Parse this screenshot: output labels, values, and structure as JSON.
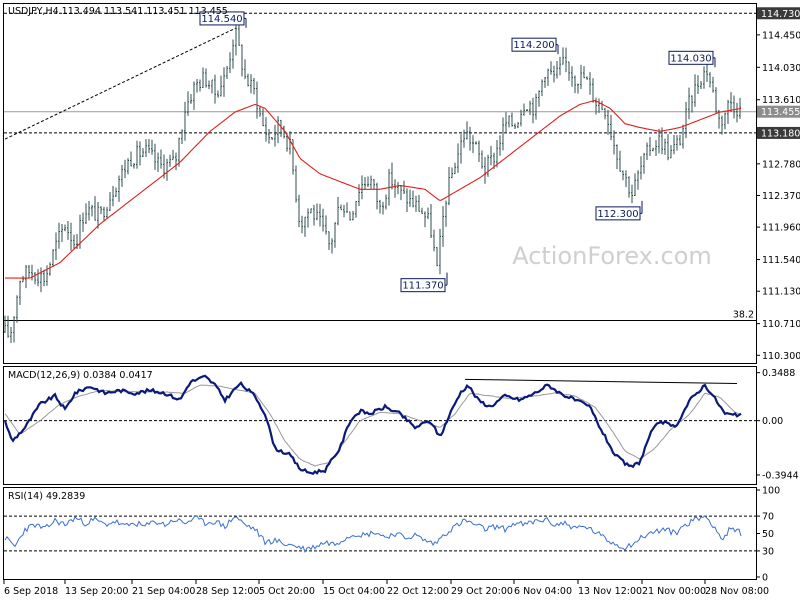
{
  "chart_data": {
    "type": "line",
    "header": "USDJPY,H4  113.494 113.541 113.451 113.455",
    "watermark": "ActionForex.com",
    "colors": {
      "price": "#2f4f4f",
      "ma": "#e0201c",
      "macd": "#0b1a78",
      "signal": "#999999",
      "rsi": "#3b6fd0",
      "grid": "#000000",
      "label_box": "#0b1a5c"
    },
    "price": {
      "ylim": [
        110.2,
        114.85
      ],
      "tick_values": [
        114.73,
        114.45,
        114.03,
        113.61,
        113.455,
        113.18,
        112.78,
        112.37,
        111.96,
        111.54,
        111.13,
        110.71,
        110.3
      ],
      "tick_labels": [
        "114.730",
        "114.450",
        "114.030",
        "113.610",
        "113.455",
        "113.180",
        "112.780",
        "112.370",
        "111.960",
        "111.540",
        "111.130",
        "110.710",
        "110.300"
      ],
      "current_price": 113.455,
      "support_level": 113.18,
      "top_level": 114.73,
      "fib_level": 110.75,
      "fib_label": "38.2",
      "annotations": [
        {
          "label": "114.540",
          "x": 236,
          "value": 114.54
        },
        {
          "label": "114.200",
          "x": 548,
          "value": 114.2
        },
        {
          "label": "114.030",
          "x": 705,
          "value": 114.03
        },
        {
          "label": "111.370",
          "x": 437,
          "value": 111.37
        },
        {
          "label": "112.300",
          "x": 632,
          "value": 112.3
        }
      ],
      "anchors": [
        [
          5,
          110.6
        ],
        [
          10,
          110.55
        ],
        [
          20,
          111.3
        ],
        [
          30,
          111.4
        ],
        [
          45,
          111.3
        ],
        [
          55,
          111.7
        ],
        [
          65,
          112.0
        ],
        [
          75,
          111.75
        ],
        [
          85,
          112.2
        ],
        [
          100,
          112.1
        ],
        [
          115,
          112.5
        ],
        [
          130,
          112.85
        ],
        [
          145,
          112.95
        ],
        [
          160,
          112.75
        ],
        [
          175,
          112.8
        ],
        [
          185,
          113.5
        ],
        [
          195,
          113.8
        ],
        [
          205,
          113.9
        ],
        [
          215,
          113.7
        ],
        [
          225,
          113.9
        ],
        [
          235,
          114.5
        ],
        [
          245,
          113.9
        ],
        [
          255,
          113.7
        ],
        [
          262,
          113.3
        ],
        [
          270,
          113.1
        ],
        [
          280,
          113.3
        ],
        [
          290,
          113.0
        ],
        [
          300,
          112.0
        ],
        [
          310,
          112.2
        ],
        [
          320,
          112.0
        ],
        [
          330,
          111.7
        ],
        [
          340,
          112.3
        ],
        [
          350,
          112.1
        ],
        [
          360,
          112.5
        ],
        [
          370,
          112.6
        ],
        [
          380,
          112.2
        ],
        [
          390,
          112.6
        ],
        [
          400,
          112.4
        ],
        [
          410,
          112.3
        ],
        [
          420,
          112.2
        ],
        [
          430,
          112.0
        ],
        [
          437,
          111.4
        ],
        [
          445,
          112.3
        ],
        [
          455,
          112.8
        ],
        [
          465,
          113.2
        ],
        [
          475,
          113.0
        ],
        [
          485,
          112.7
        ],
        [
          495,
          112.9
        ],
        [
          505,
          113.3
        ],
        [
          515,
          113.3
        ],
        [
          525,
          113.6
        ],
        [
          535,
          113.5
        ],
        [
          545,
          114.0
        ],
        [
          555,
          113.9
        ],
        [
          565,
          114.1
        ],
        [
          575,
          113.9
        ],
        [
          585,
          113.9
        ],
        [
          595,
          113.6
        ],
        [
          605,
          113.5
        ],
        [
          615,
          113.0
        ],
        [
          622,
          112.7
        ],
        [
          632,
          112.4
        ],
        [
          640,
          112.7
        ],
        [
          650,
          113.0
        ],
        [
          660,
          113.1
        ],
        [
          670,
          112.9
        ],
        [
          680,
          113.1
        ],
        [
          690,
          113.6
        ],
        [
          700,
          113.9
        ],
        [
          707,
          114.0
        ],
        [
          713,
          113.7
        ],
        [
          720,
          113.3
        ],
        [
          730,
          113.6
        ],
        [
          738,
          113.5
        ],
        [
          742,
          113.45
        ]
      ],
      "ma_anchors": [
        [
          5,
          111.3
        ],
        [
          30,
          111.3
        ],
        [
          60,
          111.5
        ],
        [
          100,
          112.0
        ],
        [
          140,
          112.4
        ],
        [
          180,
          112.8
        ],
        [
          210,
          113.2
        ],
        [
          235,
          113.45
        ],
        [
          255,
          113.55
        ],
        [
          265,
          113.5
        ],
        [
          285,
          113.2
        ],
        [
          300,
          112.85
        ],
        [
          320,
          112.65
        ],
        [
          340,
          112.55
        ],
        [
          360,
          112.45
        ],
        [
          380,
          112.45
        ],
        [
          400,
          112.5
        ],
        [
          425,
          112.45
        ],
        [
          440,
          112.3
        ],
        [
          460,
          112.45
        ],
        [
          480,
          112.6
        ],
        [
          500,
          112.8
        ],
        [
          520,
          113.0
        ],
        [
          540,
          113.2
        ],
        [
          560,
          113.4
        ],
        [
          580,
          113.55
        ],
        [
          595,
          113.6
        ],
        [
          610,
          113.5
        ],
        [
          625,
          113.3
        ],
        [
          640,
          113.25
        ],
        [
          660,
          113.2
        ],
        [
          680,
          113.25
        ],
        [
          700,
          113.35
        ],
        [
          720,
          113.45
        ],
        [
          742,
          113.5
        ]
      ],
      "trendline": [
        [
          5,
          113.1
        ],
        [
          236,
          114.54
        ]
      ]
    },
    "macd": {
      "title": "MACD(12,26,9) 0.0384 0.0417",
      "ylim": [
        -0.46,
        0.39
      ],
      "tick_values": [
        0.3488,
        0.0,
        -0.3944
      ],
      "tick_labels": [
        "0.3488",
        "0.00",
        "-0.3944"
      ],
      "anchors": [
        [
          5,
          0.0
        ],
        [
          12,
          -0.15
        ],
        [
          25,
          -0.05
        ],
        [
          40,
          0.12
        ],
        [
          55,
          0.18
        ],
        [
          65,
          0.08
        ],
        [
          75,
          0.2
        ],
        [
          90,
          0.25
        ],
        [
          105,
          0.2
        ],
        [
          120,
          0.22
        ],
        [
          135,
          0.2
        ],
        [
          150,
          0.22
        ],
        [
          165,
          0.2
        ],
        [
          180,
          0.15
        ],
        [
          190,
          0.28
        ],
        [
          205,
          0.32
        ],
        [
          215,
          0.26
        ],
        [
          225,
          0.15
        ],
        [
          240,
          0.27
        ],
        [
          255,
          0.18
        ],
        [
          265,
          0.05
        ],
        [
          275,
          -0.2
        ],
        [
          290,
          -0.25
        ],
        [
          300,
          -0.35
        ],
        [
          310,
          -0.38
        ],
        [
          325,
          -0.36
        ],
        [
          340,
          -0.2
        ],
        [
          350,
          0.0
        ],
        [
          360,
          0.07
        ],
        [
          370,
          0.05
        ],
        [
          385,
          0.1
        ],
        [
          400,
          0.05
        ],
        [
          415,
          -0.05
        ],
        [
          430,
          0.0
        ],
        [
          440,
          -0.12
        ],
        [
          450,
          0.05
        ],
        [
          460,
          0.2
        ],
        [
          468,
          0.26
        ],
        [
          478,
          0.15
        ],
        [
          490,
          0.1
        ],
        [
          505,
          0.18
        ],
        [
          520,
          0.15
        ],
        [
          535,
          0.2
        ],
        [
          548,
          0.26
        ],
        [
          560,
          0.2
        ],
        [
          575,
          0.15
        ],
        [
          590,
          0.1
        ],
        [
          600,
          -0.05
        ],
        [
          615,
          -0.25
        ],
        [
          630,
          -0.34
        ],
        [
          640,
          -0.3
        ],
        [
          650,
          -0.1
        ],
        [
          660,
          0.0
        ],
        [
          675,
          -0.05
        ],
        [
          690,
          0.15
        ],
        [
          705,
          0.26
        ],
        [
          715,
          0.16
        ],
        [
          725,
          0.05
        ],
        [
          735,
          0.04
        ],
        [
          742,
          0.04
        ]
      ],
      "signal_anchors": [
        [
          5,
          0.05
        ],
        [
          20,
          -0.1
        ],
        [
          40,
          0.0
        ],
        [
          60,
          0.12
        ],
        [
          80,
          0.18
        ],
        [
          100,
          0.22
        ],
        [
          130,
          0.21
        ],
        [
          160,
          0.21
        ],
        [
          185,
          0.2
        ],
        [
          200,
          0.26
        ],
        [
          220,
          0.25
        ],
        [
          240,
          0.22
        ],
        [
          255,
          0.2
        ],
        [
          270,
          0.05
        ],
        [
          285,
          -0.15
        ],
        [
          300,
          -0.28
        ],
        [
          315,
          -0.33
        ],
        [
          330,
          -0.3
        ],
        [
          345,
          -0.15
        ],
        [
          360,
          0.0
        ],
        [
          380,
          0.06
        ],
        [
          400,
          0.05
        ],
        [
          420,
          0.0
        ],
        [
          440,
          -0.05
        ],
        [
          455,
          0.05
        ],
        [
          470,
          0.2
        ],
        [
          490,
          0.18
        ],
        [
          510,
          0.16
        ],
        [
          535,
          0.18
        ],
        [
          555,
          0.2
        ],
        [
          575,
          0.18
        ],
        [
          595,
          0.1
        ],
        [
          610,
          -0.05
        ],
        [
          625,
          -0.22
        ],
        [
          640,
          -0.28
        ],
        [
          655,
          -0.2
        ],
        [
          670,
          -0.07
        ],
        [
          690,
          0.05
        ],
        [
          705,
          0.2
        ],
        [
          720,
          0.17
        ],
        [
          735,
          0.06
        ],
        [
          742,
          0.04
        ]
      ],
      "trendline": [
        [
          465,
          0.3
        ],
        [
          737,
          0.27
        ]
      ]
    },
    "rsi": {
      "title": "RSI(14) 49.2839",
      "ylim": [
        0,
        100
      ],
      "tick_values": [
        100,
        70,
        50,
        30,
        0
      ],
      "tick_labels": [
        "100",
        "70",
        "50",
        "30",
        "0"
      ],
      "levels": [
        70,
        30
      ],
      "anchors": [
        [
          5,
          45
        ],
        [
          15,
          35
        ],
        [
          25,
          55
        ],
        [
          35,
          60
        ],
        [
          45,
          55
        ],
        [
          55,
          65
        ],
        [
          65,
          60
        ],
        [
          75,
          68
        ],
        [
          85,
          62
        ],
        [
          95,
          66
        ],
        [
          105,
          60
        ],
        [
          115,
          64
        ],
        [
          125,
          58
        ],
        [
          135,
          62
        ],
        [
          145,
          58
        ],
        [
          155,
          64
        ],
        [
          165,
          60
        ],
        [
          175,
          66
        ],
        [
          185,
          62
        ],
        [
          195,
          68
        ],
        [
          205,
          62
        ],
        [
          215,
          64
        ],
        [
          225,
          58
        ],
        [
          235,
          70
        ],
        [
          245,
          60
        ],
        [
          255,
          55
        ],
        [
          265,
          40
        ],
        [
          275,
          42
        ],
        [
          285,
          38
        ],
        [
          295,
          36
        ],
        [
          305,
          32
        ],
        [
          315,
          35
        ],
        [
          325,
          40
        ],
        [
          335,
          38
        ],
        [
          345,
          45
        ],
        [
          355,
          50
        ],
        [
          365,
          48
        ],
        [
          375,
          52
        ],
        [
          385,
          46
        ],
        [
          395,
          50
        ],
        [
          405,
          45
        ],
        [
          415,
          48
        ],
        [
          425,
          42
        ],
        [
          435,
          38
        ],
        [
          445,
          50
        ],
        [
          455,
          58
        ],
        [
          465,
          65
        ],
        [
          475,
          60
        ],
        [
          485,
          55
        ],
        [
          495,
          58
        ],
        [
          505,
          55
        ],
        [
          515,
          62
        ],
        [
          525,
          60
        ],
        [
          535,
          64
        ],
        [
          545,
          66
        ],
        [
          555,
          60
        ],
        [
          565,
          62
        ],
        [
          575,
          56
        ],
        [
          585,
          58
        ],
        [
          595,
          52
        ],
        [
          605,
          44
        ],
        [
          615,
          38
        ],
        [
          625,
          34
        ],
        [
          635,
          40
        ],
        [
          645,
          48
        ],
        [
          655,
          52
        ],
        [
          665,
          55
        ],
        [
          675,
          50
        ],
        [
          685,
          60
        ],
        [
          695,
          66
        ],
        [
          705,
          70
        ],
        [
          715,
          58
        ],
        [
          722,
          42
        ],
        [
          730,
          55
        ],
        [
          738,
          52
        ],
        [
          742,
          50
        ]
      ]
    },
    "x_tick_labels": [
      {
        "label": "6 Sep 2018",
        "x": 4
      },
      {
        "label": "13 Sep 20:00",
        "x": 65
      },
      {
        "label": "21 Sep 04:00",
        "x": 132
      },
      {
        "label": "28 Sep 12:00",
        "x": 196
      },
      {
        "label": "5 Oct 20:00",
        "x": 259
      },
      {
        "label": "15 Oct 04:00",
        "x": 323
      },
      {
        "label": "22 Oct 12:00",
        "x": 387
      },
      {
        "label": "29 Oct 20:00",
        "x": 451
      },
      {
        "label": "6 Nov 04:00",
        "x": 514
      },
      {
        "label": "13 Nov 12:00",
        "x": 578
      },
      {
        "label": "21 Nov 00:00",
        "x": 642
      },
      {
        "label": "28 Nov 08:00",
        "x": 705
      }
    ]
  }
}
